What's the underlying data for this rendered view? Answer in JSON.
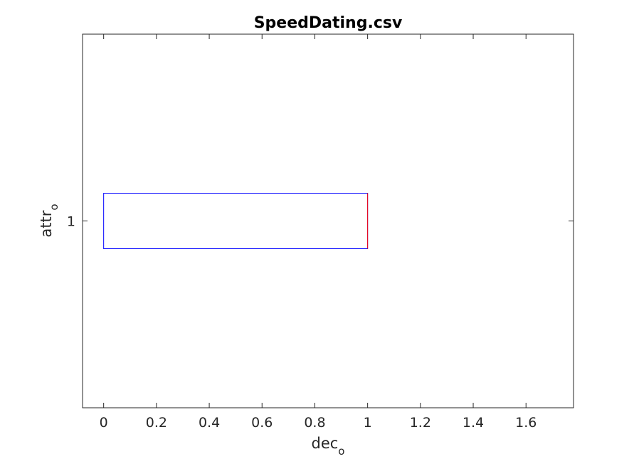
{
  "chart_data": {
    "type": "boxplot",
    "orientation": "horizontal",
    "title": "SpeedDating.csv",
    "xlabel": {
      "base": "dec",
      "subscript": "o"
    },
    "ylabel": {
      "base": "attr",
      "subscript": "o"
    },
    "xlim": [
      -0.08,
      1.78
    ],
    "xticks": [
      0,
      0.2,
      0.4,
      0.6,
      0.8,
      1,
      1.2,
      1.4,
      1.6
    ],
    "xtick_labels": [
      "0",
      "0.2",
      "0.4",
      "0.6",
      "0.8",
      "1",
      "1.2",
      "1.4",
      "1.6"
    ],
    "yticks": [
      1
    ],
    "ytick_labels": [
      "1"
    ],
    "grid": false,
    "boxes": [
      {
        "group": "1",
        "q1": 0,
        "median": 1,
        "q3": 1,
        "whisker_low": 0,
        "whisker_high": 1
      }
    ],
    "colors": {
      "box": "#0000ff",
      "median": "#ff0000",
      "axes": "#262626",
      "title": "#000000"
    }
  }
}
